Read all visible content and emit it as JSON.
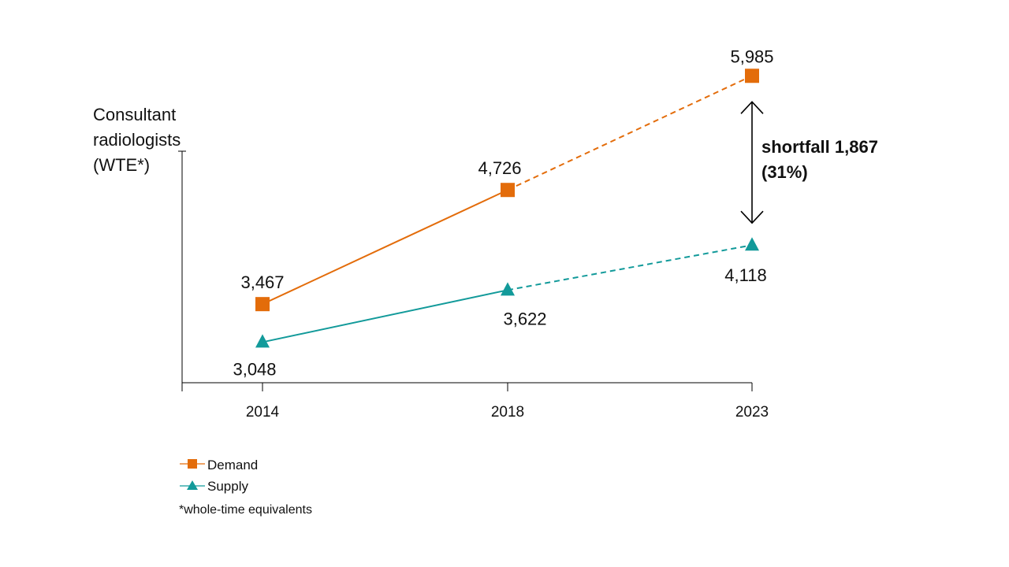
{
  "chart_data": {
    "type": "line",
    "title": "",
    "ylabel_lines": [
      "Consultant",
      "radiologists",
      "(WTE*)"
    ],
    "xlabel": "",
    "categories": [
      "2014",
      "2018",
      "2023"
    ],
    "ylim": [
      2600,
      6300
    ],
    "grid": false,
    "series": [
      {
        "name": "Demand",
        "color": "#E36C0A",
        "marker": "square",
        "values": [
          3467,
          4726,
          5985
        ],
        "value_labels": [
          "3,467",
          "4,726",
          "5,985"
        ],
        "projected_from_index": 1
      },
      {
        "name": "Supply",
        "color": "#129A9A",
        "marker": "triangle",
        "values": [
          3048,
          3622,
          4118
        ],
        "value_labels": [
          "3,048",
          "3,622",
          "4,118"
        ],
        "projected_from_index": 1
      }
    ],
    "annotation": {
      "category": "2023",
      "line1": "shortfall 1,867",
      "line2": "(31%)"
    },
    "legend": {
      "position": "bottom-left",
      "entries": [
        "Demand",
        "Supply"
      ]
    },
    "footnote": "*whole-time equivalents"
  }
}
